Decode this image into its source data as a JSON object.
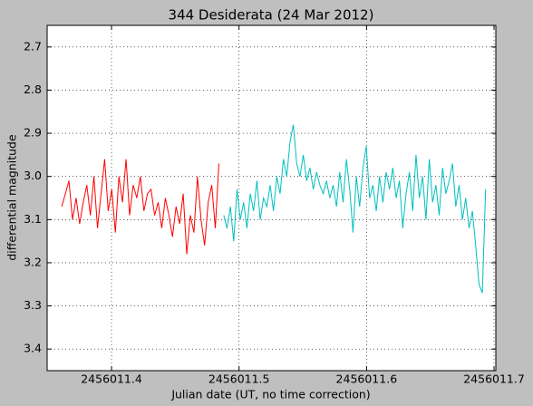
{
  "chart_data": {
    "type": "line",
    "title": "344 Desiderata (24 Mar 2012)",
    "xlabel": "Julian date (UT, no time correction)",
    "ylabel": "differential magnitude",
    "xlim": [
      2456011.3495,
      2456011.7014
    ],
    "ylim": [
      2.65,
      3.45
    ],
    "y_inverted": true,
    "grid": true,
    "xticks": [
      2456011.4,
      2456011.5,
      2456011.6,
      2456011.7
    ],
    "yticks": [
      2.7,
      2.8,
      2.9,
      {
        "value": 3,
        "label": "3.0"
      },
      3.1,
      3.2,
      3.3,
      3.4
    ],
    "series": [
      {
        "color": "#ff0000",
        "x": [
          2456011.361,
          2456011.3638,
          2456011.3666,
          2456011.3694,
          2456011.3722,
          2456011.375,
          2456011.3778,
          2456011.3806,
          2456011.3834,
          2456011.3862,
          2456011.389,
          2456011.3918,
          2456011.3946,
          2456011.3974,
          2456011.4002,
          2456011.403,
          2456011.4058,
          2456011.4086,
          2456011.4114,
          2456011.4142,
          2456011.417,
          2456011.4198,
          2456011.4226,
          2456011.4254,
          2456011.4282,
          2456011.431,
          2456011.4338,
          2456011.4366,
          2456011.4394,
          2456011.4422,
          2456011.445,
          2456011.4478,
          2456011.4506,
          2456011.4534,
          2456011.4562,
          2456011.459,
          2456011.4618,
          2456011.4646,
          2456011.4674,
          2456011.4702,
          2456011.473,
          2456011.4758,
          2456011.4786,
          2456011.4814,
          2456011.4842
        ],
        "values": [
          3.07,
          3.04,
          3.01,
          3.1,
          3.05,
          3.11,
          3.06,
          3.02,
          3.09,
          3.0,
          3.12,
          3.04,
          2.96,
          3.08,
          3.03,
          3.13,
          3.0,
          3.06,
          2.96,
          3.09,
          3.02,
          3.05,
          3.0,
          3.08,
          3.04,
          3.03,
          3.09,
          3.06,
          3.12,
          3.05,
          3.09,
          3.14,
          3.07,
          3.11,
          3.04,
          3.18,
          3.09,
          3.13,
          3.0,
          3.1,
          3.16,
          3.06,
          3.02,
          3.12,
          2.97
        ]
      },
      {
        "color": "#00bfbf",
        "x": [
          2456011.488,
          2456011.4906,
          2456011.4932,
          2456011.4958,
          2456011.4984,
          2456011.501,
          2456011.5036,
          2456011.5062,
          2456011.5088,
          2456011.5114,
          2456011.514,
          2456011.5166,
          2456011.5192,
          2456011.5218,
          2456011.5244,
          2456011.527,
          2456011.5296,
          2456011.5322,
          2456011.5348,
          2456011.5374,
          2456011.54,
          2456011.5426,
          2456011.5452,
          2456011.5478,
          2456011.5504,
          2456011.553,
          2456011.5556,
          2456011.5582,
          2456011.5608,
          2456011.5634,
          2456011.566,
          2456011.5686,
          2456011.5712,
          2456011.5738,
          2456011.5764,
          2456011.579,
          2456011.5816,
          2456011.5842,
          2456011.5868,
          2456011.5894,
          2456011.592,
          2456011.5946,
          2456011.5972,
          2456011.5998,
          2456011.6024,
          2456011.605,
          2456011.6076,
          2456011.6102,
          2456011.6128,
          2456011.6154,
          2456011.618,
          2456011.6206,
          2456011.6232,
          2456011.6258,
          2456011.6284,
          2456011.631,
          2456011.6336,
          2456011.6362,
          2456011.6388,
          2456011.6414,
          2456011.644,
          2456011.6466,
          2456011.6492,
          2456011.6518,
          2456011.6544,
          2456011.657,
          2456011.6596,
          2456011.6622,
          2456011.6648,
          2456011.6674,
          2456011.67,
          2456011.6726,
          2456011.6752,
          2456011.6778,
          2456011.6804,
          2456011.683,
          2456011.6856,
          2456011.6882,
          2456011.6908,
          2456011.6934
        ],
        "values": [
          3.09,
          3.12,
          3.07,
          3.15,
          3.03,
          3.1,
          3.06,
          3.12,
          3.04,
          3.08,
          3.01,
          3.1,
          3.05,
          3.07,
          3.02,
          3.08,
          3.0,
          3.04,
          2.96,
          3.0,
          2.92,
          2.88,
          2.97,
          3.0,
          2.95,
          3.01,
          2.98,
          3.03,
          2.99,
          3.02,
          3.04,
          3.01,
          3.05,
          3.02,
          3.07,
          2.99,
          3.06,
          2.96,
          3.03,
          3.13,
          3.0,
          3.07,
          2.98,
          2.93,
          3.05,
          3.02,
          3.08,
          3.0,
          3.06,
          2.99,
          3.03,
          2.98,
          3.05,
          3.01,
          3.12,
          3.04,
          2.99,
          3.08,
          2.95,
          3.05,
          3.0,
          3.1,
          2.96,
          3.06,
          3.02,
          3.09,
          2.98,
          3.04,
          3.01,
          2.97,
          3.07,
          3.02,
          3.1,
          3.05,
          3.12,
          3.08,
          3.16,
          3.25,
          3.27,
          3.03
        ]
      }
    ]
  }
}
